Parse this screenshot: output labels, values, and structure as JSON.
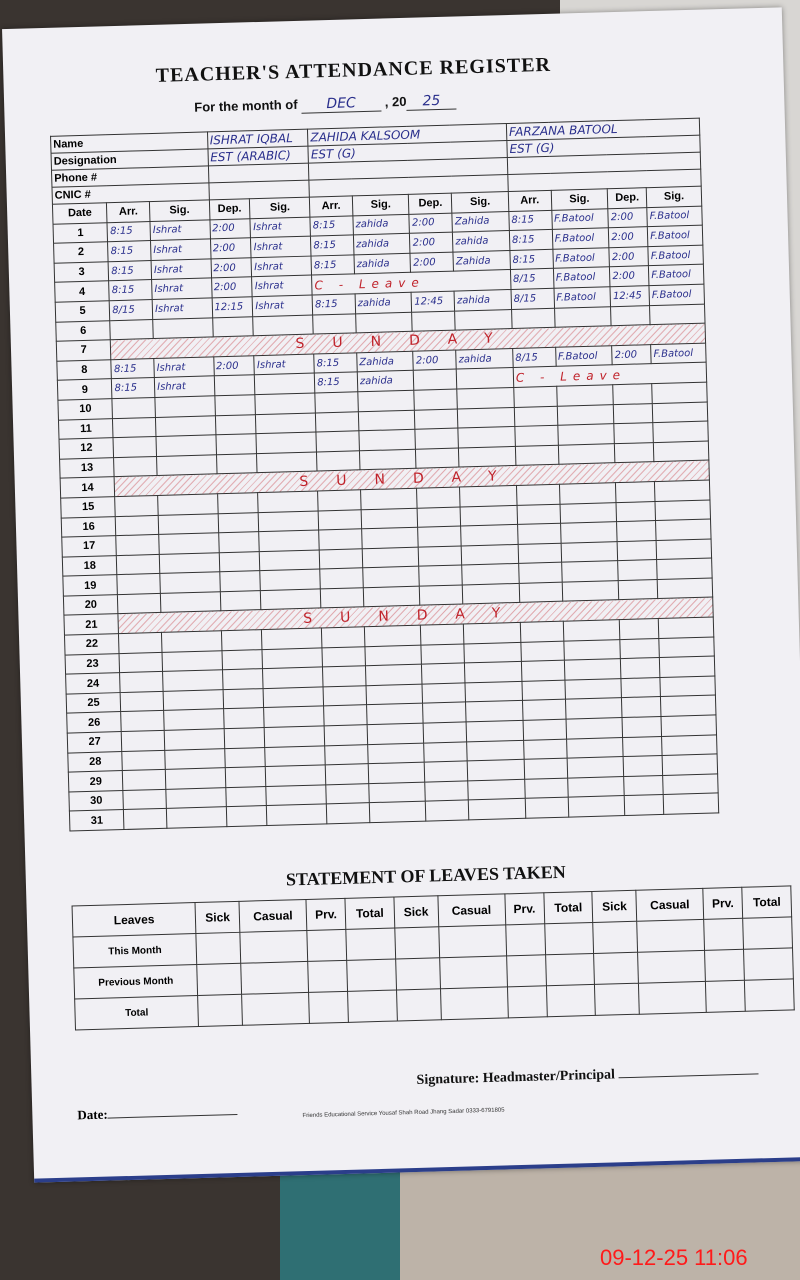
{
  "register": {
    "title": "TEACHER'S ATTENDANCE REGISTER",
    "month_label": "For the month of",
    "month_value": "DEC",
    "year_prefix": ", 20",
    "year_value": "25",
    "labels": {
      "name": "Name",
      "designation": "Designation",
      "phone": "Phone #",
      "cnic": "CNIC #",
      "date": "Date"
    },
    "column_headers": [
      "Arr.",
      "Sig.",
      "Dep.",
      "Sig."
    ],
    "teachers": [
      {
        "name": "ISHRAT IQBAL",
        "designation": "EST (ARABIC)"
      },
      {
        "name": "ZAHIDA KALSOOM",
        "designation": "EST (G)"
      },
      {
        "name": "FARZANA BATOOL",
        "designation": "EST (G)"
      }
    ],
    "sunday_text": "SUNDAY",
    "rows": [
      {
        "date": "1",
        "cells": [
          "8:15",
          "Ishrat",
          "2:00",
          "Ishrat",
          "8:15",
          "zahida",
          "2:00",
          "Zahida",
          "8:15",
          "F.Batool",
          "2:00",
          "F.Batool"
        ]
      },
      {
        "date": "2",
        "cells": [
          "8:15",
          "Ishrat",
          "2:00",
          "Ishrat",
          "8:15",
          "zahida",
          "2:00",
          "zahida",
          "8:15",
          "F.Batool",
          "2:00",
          "F.Batool"
        ]
      },
      {
        "date": "3",
        "cells": [
          "8:15",
          "Ishrat",
          "2:00",
          "Ishrat",
          "8:15",
          "zahida",
          "2:00",
          "Zahida",
          "8:15",
          "F.Batool",
          "2:00",
          "F.Batool"
        ]
      },
      {
        "date": "4",
        "cells": [
          "8:15",
          "Ishrat",
          "2:00",
          "Ishrat",
          "",
          "",
          "",
          "",
          "8/15",
          "F.Batool",
          "2:00",
          "F.Batool"
        ],
        "leave": {
          "teacher": 1,
          "text": "C - Leave"
        }
      },
      {
        "date": "5",
        "cells": [
          "8/15",
          "Ishrat",
          "12:15",
          "Ishrat",
          "8:15",
          "zahida",
          "12:45",
          "zahida",
          "8/15",
          "F.Batool",
          "12:45",
          "F.Batool"
        ]
      },
      {
        "date": "6",
        "cells": [
          "",
          "",
          "",
          "",
          "",
          "",
          "",
          "",
          "",
          "",
          "",
          ""
        ]
      },
      {
        "date": "7",
        "sunday": true
      },
      {
        "date": "8",
        "cells": [
          "8:15",
          "Ishrat",
          "2:00",
          "Ishrat",
          "8:15",
          "Zahida",
          "2:00",
          "zahida",
          "8/15",
          "F.Batool",
          "2:00",
          "F.Batool"
        ]
      },
      {
        "date": "9",
        "cells": [
          "8:15",
          "Ishrat",
          "",
          "",
          "8:15",
          "zahida",
          "",
          "",
          "",
          "",
          "",
          ""
        ],
        "leave": {
          "teacher": 2,
          "text": "C - Leave"
        }
      },
      {
        "date": "10"
      },
      {
        "date": "11"
      },
      {
        "date": "12"
      },
      {
        "date": "13"
      },
      {
        "date": "14",
        "sunday": true
      },
      {
        "date": "15"
      },
      {
        "date": "16"
      },
      {
        "date": "17"
      },
      {
        "date": "18"
      },
      {
        "date": "19"
      },
      {
        "date": "20"
      },
      {
        "date": "21",
        "sunday": true
      },
      {
        "date": "22"
      },
      {
        "date": "23"
      },
      {
        "date": "24"
      },
      {
        "date": "25"
      },
      {
        "date": "26"
      },
      {
        "date": "27"
      },
      {
        "date": "28"
      },
      {
        "date": "29"
      },
      {
        "date": "30"
      },
      {
        "date": "31"
      }
    ]
  },
  "leaves": {
    "title": "STATEMENT OF LEAVES TAKEN",
    "first_header": "Leaves",
    "headers": [
      "Sick",
      "Casual",
      "Prv.",
      "Total",
      "Sick",
      "Casual",
      "Prv.",
      "Total",
      "Sick",
      "Casual",
      "Prv.",
      "Total"
    ],
    "row_labels": [
      "This Month",
      "Previous Month",
      "Total"
    ]
  },
  "footer": {
    "signature": "Signature: Headmaster/Principal",
    "date_label": "Date:",
    "printer": "Friends Educational Service Yousaf Shah Road Jhang Sadar 0333-6791805"
  },
  "timestamp": "09-12-25  11:06",
  "colors": {
    "ink": "#2a2f8c",
    "red_ink": "#c0232b",
    "stamp": "#ff1a1a"
  }
}
